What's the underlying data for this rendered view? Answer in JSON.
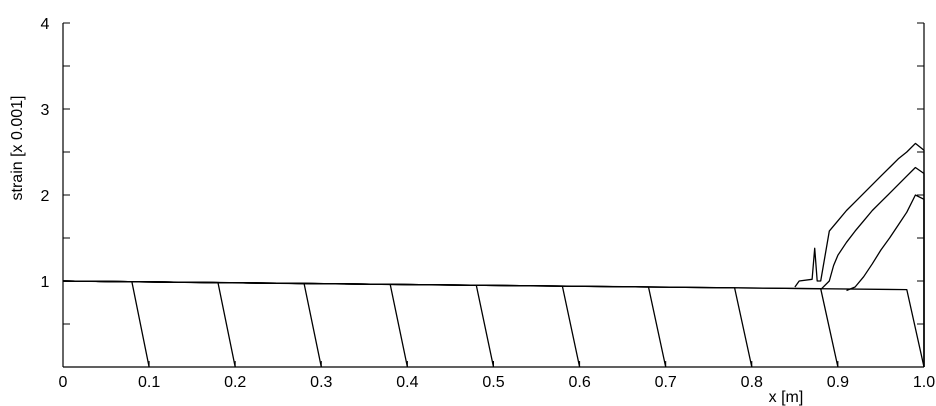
{
  "chart_data": {
    "type": "line",
    "title": "",
    "xlabel": "x [m]",
    "ylabel": "strain [x 0.001]",
    "xlim": [
      0,
      1.0
    ],
    "ylim": [
      0,
      4
    ],
    "grid": false,
    "legend": "none",
    "x_ticks": [
      {
        "value": 0,
        "label": "0"
      },
      {
        "value": 0.1,
        "label": "0.1"
      },
      {
        "value": 0.2,
        "label": "0.2"
      },
      {
        "value": 0.3,
        "label": "0.3"
      },
      {
        "value": 0.4,
        "label": "0.4"
      },
      {
        "value": 0.5,
        "label": "0.5"
      },
      {
        "value": 0.6,
        "label": "0.6"
      },
      {
        "value": 0.7,
        "label": "0.7"
      },
      {
        "value": 0.8,
        "label": "0.8"
      },
      {
        "value": 0.9,
        "label": "0.9"
      },
      {
        "value": 1.0,
        "label": "1.0"
      }
    ],
    "y_ticks": [
      {
        "value": 1,
        "label": "1"
      },
      {
        "value": 2,
        "label": "2"
      },
      {
        "value": 3,
        "label": "3"
      },
      {
        "value": 4,
        "label": "4"
      }
    ],
    "series": [
      {
        "x": [
          0,
          0.08,
          0.1
        ],
        "y": [
          1.0,
          0.99,
          0.0
        ]
      },
      {
        "x": [
          0,
          0.18,
          0.2
        ],
        "y": [
          1.0,
          0.98,
          0.0
        ]
      },
      {
        "x": [
          0,
          0.28,
          0.3
        ],
        "y": [
          1.0,
          0.97,
          0.0
        ]
      },
      {
        "x": [
          0,
          0.38,
          0.4
        ],
        "y": [
          1.0,
          0.96,
          0.0
        ]
      },
      {
        "x": [
          0,
          0.48,
          0.5
        ],
        "y": [
          1.0,
          0.95,
          0.0
        ]
      },
      {
        "x": [
          0,
          0.58,
          0.6
        ],
        "y": [
          1.0,
          0.94,
          0.0
        ]
      },
      {
        "x": [
          0,
          0.68,
          0.7
        ],
        "y": [
          1.0,
          0.93,
          0.0
        ]
      },
      {
        "x": [
          0,
          0.78,
          0.8
        ],
        "y": [
          1.0,
          0.92,
          0.0
        ]
      },
      {
        "x": [
          0,
          0.88,
          0.9
        ],
        "y": [
          1.0,
          0.91,
          0.0
        ]
      },
      {
        "x": [
          0,
          0.98,
          1.0
        ],
        "y": [
          1.0,
          0.9,
          0.0
        ]
      },
      {
        "x": [
          0.85,
          0.855,
          0.87,
          0.873,
          0.876,
          0.88,
          0.89,
          0.9,
          0.91,
          0.92,
          0.93,
          0.94,
          0.95,
          0.96,
          0.97,
          0.98,
          0.99,
          1.0,
          1.0
        ],
        "y": [
          0.93,
          1.0,
          1.02,
          1.38,
          1.0,
          1.0,
          1.58,
          1.7,
          1.82,
          1.92,
          2.02,
          2.12,
          2.22,
          2.32,
          2.42,
          2.5,
          2.6,
          2.52,
          0.0
        ]
      },
      {
        "x": [
          0.88,
          0.89,
          0.895,
          0.9,
          0.91,
          0.92,
          0.93,
          0.94,
          0.95,
          0.96,
          0.97,
          0.98,
          0.99,
          1.0,
          1.0
        ],
        "y": [
          0.9,
          1.0,
          1.18,
          1.3,
          1.45,
          1.58,
          1.7,
          1.82,
          1.92,
          2.02,
          2.12,
          2.22,
          2.32,
          2.25,
          0.0
        ]
      },
      {
        "x": [
          0.91,
          0.92,
          0.93,
          0.94,
          0.95,
          0.96,
          0.97,
          0.98,
          0.99,
          1.0,
          1.0
        ],
        "y": [
          0.89,
          0.93,
          1.05,
          1.2,
          1.36,
          1.5,
          1.65,
          1.8,
          2.0,
          1.95,
          0.0
        ]
      }
    ]
  }
}
